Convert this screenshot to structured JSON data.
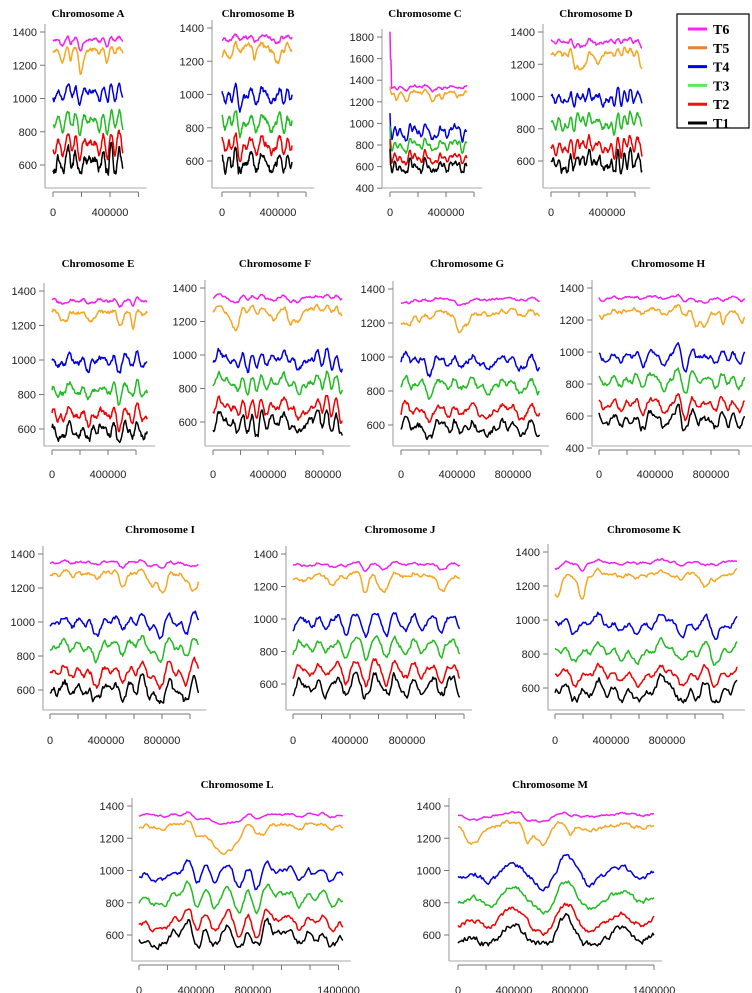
{
  "legend": {
    "position": "top-right",
    "entries": [
      {
        "name": "T6",
        "color": "#ff22ff"
      },
      {
        "name": "T5",
        "color": "#e8812f"
      },
      {
        "name": "T4",
        "color": "#0000ee"
      },
      {
        "name": "T3",
        "color": "#55ee55"
      },
      {
        "name": "T2",
        "color": "#ee1111"
      },
      {
        "name": "T1",
        "color": "#000000"
      }
    ]
  },
  "series_colors": {
    "T6": "#ee22ee",
    "T5": "#f5a623",
    "T4": "#0000dd",
    "T3": "#22bb22",
    "T2": "#ee0000",
    "T1": "#000000"
  },
  "chart_data": [
    {
      "type": "line",
      "title": "Chromosome A",
      "x_max": 490000,
      "x_ticks": [
        0,
        200000,
        400000,
        600000
      ],
      "x_tick_labels": [
        "0",
        "",
        "400000",
        ""
      ],
      "y_ticks": [
        600,
        800,
        1000,
        1200,
        1400
      ],
      "seed": 11,
      "series": [
        {
          "name": "T6",
          "mean": 1355,
          "amp": 25
        },
        {
          "name": "T5",
          "mean": 1290,
          "amp": 35
        },
        {
          "name": "T4",
          "mean": 1030,
          "amp": 45
        },
        {
          "name": "T3",
          "mean": 860,
          "amp": 55
        },
        {
          "name": "T2",
          "mean": 720,
          "amp": 65
        },
        {
          "name": "T1",
          "mean": 610,
          "amp": 70
        }
      ]
    },
    {
      "type": "line",
      "title": "Chromosome B",
      "x_max": 500000,
      "x_ticks": [
        0,
        200000,
        400000,
        600000
      ],
      "x_tick_labels": [
        "0",
        "",
        "400000",
        ""
      ],
      "y_ticks": [
        600,
        800,
        1000,
        1200,
        1400
      ],
      "seed": 22,
      "series": [
        {
          "name": "T6",
          "mean": 1345,
          "amp": 30
        },
        {
          "name": "T5",
          "mean": 1285,
          "amp": 45
        },
        {
          "name": "T4",
          "mean": 990,
          "amp": 55
        },
        {
          "name": "T3",
          "mean": 830,
          "amp": 60
        },
        {
          "name": "T2",
          "mean": 690,
          "amp": 60
        },
        {
          "name": "T1",
          "mean": 590,
          "amp": 65
        }
      ]
    },
    {
      "type": "line",
      "title": "Chromosome C",
      "x_max": 550000,
      "x_ticks": [
        0,
        200000,
        400000,
        600000
      ],
      "x_tick_labels": [
        "0",
        "",
        "400000",
        ""
      ],
      "y_ticks": [
        400,
        600,
        800,
        1000,
        1200,
        1400,
        1600,
        1800
      ],
      "seed": 33,
      "start_spike": 1850,
      "series": [
        {
          "name": "T6",
          "mean": 1340,
          "amp": 25
        },
        {
          "name": "T5",
          "mean": 1290,
          "amp": 35
        },
        {
          "name": "T4",
          "mean": 920,
          "amp": 55
        },
        {
          "name": "T3",
          "mean": 800,
          "amp": 45
        },
        {
          "name": "T2",
          "mean": 680,
          "amp": 45
        },
        {
          "name": "T1",
          "mean": 590,
          "amp": 55
        }
      ]
    },
    {
      "type": "line",
      "title": "Chromosome D",
      "x_max": 650000,
      "x_ticks": [
        0,
        200000,
        400000,
        600000
      ],
      "x_tick_labels": [
        "0",
        "",
        "400000",
        ""
      ],
      "y_ticks": [
        600,
        800,
        1000,
        1200,
        1400
      ],
      "seed": 44,
      "series": [
        {
          "name": "T6",
          "mean": 1345,
          "amp": 30
        },
        {
          "name": "T5",
          "mean": 1270,
          "amp": 45
        },
        {
          "name": "T4",
          "mean": 990,
          "amp": 55
        },
        {
          "name": "T3",
          "mean": 840,
          "amp": 55
        },
        {
          "name": "T2",
          "mean": 690,
          "amp": 60
        },
        {
          "name": "T1",
          "mean": 590,
          "amp": 65
        }
      ]
    },
    {
      "type": "line",
      "title": "Chromosome E",
      "x_max": 680000,
      "x_ticks": [
        0,
        200000,
        400000,
        600000
      ],
      "x_tick_labels": [
        "0",
        "",
        "400000",
        ""
      ],
      "y_ticks": [
        600,
        800,
        1000,
        1200,
        1400
      ],
      "seed": 55,
      "series": [
        {
          "name": "T6",
          "mean": 1345,
          "amp": 25
        },
        {
          "name": "T5",
          "mean": 1275,
          "amp": 40
        },
        {
          "name": "T4",
          "mean": 990,
          "amp": 50
        },
        {
          "name": "T3",
          "mean": 820,
          "amp": 55
        },
        {
          "name": "T2",
          "mean": 680,
          "amp": 60
        },
        {
          "name": "T1",
          "mean": 585,
          "amp": 60
        }
      ]
    },
    {
      "type": "line",
      "title": "Chromosome F",
      "x_max": 940000,
      "x_ticks": [
        0,
        200000,
        400000,
        600000,
        800000
      ],
      "x_tick_labels": [
        "0",
        "",
        "400000",
        "",
        "800000"
      ],
      "y_ticks": [
        600,
        800,
        1000,
        1200,
        1400
      ],
      "seed": 66,
      "series": [
        {
          "name": "T6",
          "mean": 1345,
          "amp": 25
        },
        {
          "name": "T5",
          "mean": 1270,
          "amp": 45
        },
        {
          "name": "T4",
          "mean": 970,
          "amp": 60
        },
        {
          "name": "T3",
          "mean": 830,
          "amp": 60
        },
        {
          "name": "T2",
          "mean": 680,
          "amp": 65
        },
        {
          "name": "T1",
          "mean": 590,
          "amp": 70
        }
      ]
    },
    {
      "type": "line",
      "title": "Chromosome G",
      "x_max": 990000,
      "x_ticks": [
        0,
        200000,
        400000,
        600000,
        800000,
        1000000
      ],
      "x_tick_labels": [
        "0",
        "",
        "400000",
        "",
        "800000",
        ""
      ],
      "y_ticks": [
        600,
        800,
        1000,
        1200,
        1400
      ],
      "seed": 77,
      "series": [
        {
          "name": "T6",
          "mean": 1340,
          "amp": 25
        },
        {
          "name": "T5",
          "mean": 1260,
          "amp": 45
        },
        {
          "name": "T4",
          "mean": 970,
          "amp": 60
        },
        {
          "name": "T3",
          "mean": 830,
          "amp": 60
        },
        {
          "name": "T2",
          "mean": 680,
          "amp": 60
        },
        {
          "name": "T1",
          "mean": 580,
          "amp": 65
        }
      ]
    },
    {
      "type": "line",
      "title": "Chromosome H",
      "x_max": 1040000,
      "x_ticks": [
        0,
        200000,
        400000,
        600000,
        800000,
        1000000
      ],
      "x_tick_labels": [
        "0",
        "",
        "400000",
        "",
        "800000",
        ""
      ],
      "y_ticks": [
        400,
        600,
        800,
        1000,
        1200,
        1400
      ],
      "seed": 88,
      "series": [
        {
          "name": "T6",
          "mean": 1340,
          "amp": 25
        },
        {
          "name": "T5",
          "mean": 1255,
          "amp": 45
        },
        {
          "name": "T4",
          "mean": 970,
          "amp": 60
        },
        {
          "name": "T3",
          "mean": 820,
          "amp": 60
        },
        {
          "name": "T2",
          "mean": 670,
          "amp": 60
        },
        {
          "name": "T1",
          "mean": 570,
          "amp": 65
        }
      ]
    },
    {
      "type": "line",
      "title": "Chromosome I",
      "x_max": 1060000,
      "x_ticks": [
        0,
        200000,
        400000,
        600000,
        800000,
        1000000
      ],
      "x_tick_labels": [
        "0",
        "",
        "400000",
        "",
        "800000",
        ""
      ],
      "y_ticks": [
        600,
        800,
        1000,
        1200,
        1400
      ],
      "seed": 99,
      "series": [
        {
          "name": "T6",
          "mean": 1350,
          "amp": 25
        },
        {
          "name": "T5",
          "mean": 1280,
          "amp": 45
        },
        {
          "name": "T4",
          "mean": 990,
          "amp": 60
        },
        {
          "name": "T3",
          "mean": 850,
          "amp": 60
        },
        {
          "name": "T2",
          "mean": 700,
          "amp": 65
        },
        {
          "name": "T1",
          "mean": 590,
          "amp": 70
        }
      ]
    },
    {
      "type": "line",
      "title": "Chromosome J",
      "x_max": 1170000,
      "x_ticks": [
        0,
        200000,
        400000,
        600000,
        800000,
        1000000,
        1200000
      ],
      "x_tick_labels": [
        "0",
        "",
        "400000",
        "",
        "800000",
        "",
        ""
      ],
      "y_ticks": [
        600,
        800,
        1000,
        1200,
        1400
      ],
      "seed": 111,
      "series": [
        {
          "name": "T6",
          "mean": 1340,
          "amp": 25
        },
        {
          "name": "T5",
          "mean": 1270,
          "amp": 45
        },
        {
          "name": "T4",
          "mean": 980,
          "amp": 60
        },
        {
          "name": "T3",
          "mean": 830,
          "amp": 60
        },
        {
          "name": "T2",
          "mean": 680,
          "amp": 65
        },
        {
          "name": "T1",
          "mean": 580,
          "amp": 70
        }
      ]
    },
    {
      "type": "line",
      "title": "Chromosome K",
      "x_max": 1300000,
      "x_ticks": [
        0,
        200000,
        400000,
        600000,
        800000,
        1000000,
        1200000
      ],
      "x_tick_labels": [
        "0",
        "",
        "400000",
        "",
        "800000",
        "",
        ""
      ],
      "y_ticks": [
        600,
        800,
        1000,
        1200,
        1400
      ],
      "seed": 122,
      "series": [
        {
          "name": "T6",
          "mean": 1340,
          "amp": 25
        },
        {
          "name": "T5",
          "mean": 1265,
          "amp": 45
        },
        {
          "name": "T4",
          "mean": 970,
          "amp": 60
        },
        {
          "name": "T3",
          "mean": 810,
          "amp": 60
        },
        {
          "name": "T2",
          "mean": 670,
          "amp": 60
        },
        {
          "name": "T1",
          "mean": 575,
          "amp": 65
        }
      ]
    },
    {
      "type": "line",
      "title": "Chromosome L",
      "x_max": 1430000,
      "x_ticks": [
        0,
        200000,
        400000,
        600000,
        800000,
        1000000,
        1200000,
        1400000
      ],
      "x_tick_labels": [
        "0",
        "",
        "400000",
        "",
        "800000",
        "",
        "",
        "1400000"
      ],
      "y_ticks": [
        600,
        800,
        1000,
        1200,
        1400
      ],
      "seed": 133,
      "series": [
        {
          "name": "T6",
          "mean": 1345,
          "amp": 25
        },
        {
          "name": "T5",
          "mean": 1280,
          "amp": 45
        },
        {
          "name": "T4",
          "mean": 980,
          "amp": 60
        },
        {
          "name": "T3",
          "mean": 830,
          "amp": 60
        },
        {
          "name": "T2",
          "mean": 680,
          "amp": 65
        },
        {
          "name": "T1",
          "mean": 585,
          "amp": 65
        }
      ]
    },
    {
      "type": "line",
      "title": "Chromosome M",
      "x_max": 1400000,
      "x_ticks": [
        0,
        200000,
        400000,
        600000,
        800000,
        1000000,
        1200000,
        1400000
      ],
      "x_tick_labels": [
        "0",
        "",
        "400000",
        "",
        "800000",
        "",
        "",
        "1400000"
      ],
      "y_ticks": [
        600,
        800,
        1000,
        1200,
        1400
      ],
      "seed": 144,
      "series": [
        {
          "name": "T6",
          "mean": 1345,
          "amp": 25
        },
        {
          "name": "T5",
          "mean": 1275,
          "amp": 45
        },
        {
          "name": "T4",
          "mean": 980,
          "amp": 60
        },
        {
          "name": "T3",
          "mean": 830,
          "amp": 60
        },
        {
          "name": "T2",
          "mean": 690,
          "amp": 60
        },
        {
          "name": "T1",
          "mean": 590,
          "amp": 65
        }
      ]
    }
  ]
}
